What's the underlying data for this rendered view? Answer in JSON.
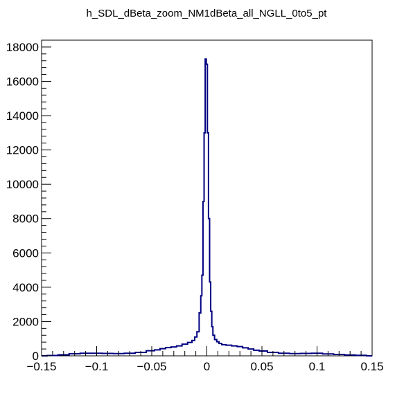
{
  "chart_data": {
    "type": "histogram",
    "title": "h_SDL_dBeta_zoom_NM1dBeta_all_NGLL_0to5_pt",
    "xlabel": "",
    "ylabel": "",
    "xlim": [
      -0.15,
      0.15
    ],
    "ylim": [
      0,
      18400
    ],
    "x_ticks": [
      -0.15,
      -0.1,
      -0.05,
      0,
      0.05,
      0.1,
      0.15
    ],
    "x_tick_labels": [
      "−0.15",
      "−0.1",
      "−0.05",
      "0",
      "0.05",
      "0.1",
      "0.15"
    ],
    "y_ticks": [
      0,
      2000,
      4000,
      6000,
      8000,
      10000,
      12000,
      14000,
      16000,
      18000
    ],
    "y_tick_labels": [
      "0",
      "2000",
      "4000",
      "6000",
      "8000",
      "10000",
      "12000",
      "14000",
      "16000",
      "18000"
    ],
    "grid": false,
    "legend": "none",
    "line_color": "#000080",
    "series": [
      {
        "x": [
          -0.15,
          -0.14,
          -0.13,
          -0.12,
          -0.11,
          -0.1,
          -0.09,
          -0.08,
          -0.07,
          -0.06,
          -0.05,
          -0.045,
          -0.04,
          -0.035,
          -0.03,
          -0.025,
          -0.02,
          -0.015,
          -0.012,
          -0.01,
          -0.008,
          -0.006,
          -0.005,
          -0.004,
          -0.003,
          -0.002,
          -0.001,
          0,
          0.001,
          0.002,
          0.003,
          0.004,
          0.005,
          0.006,
          0.008,
          0.01,
          0.012,
          0.015,
          0.02,
          0.025,
          0.03,
          0.035,
          0.04,
          0.045,
          0.05,
          0.06,
          0.07,
          0.08,
          0.09,
          0.1,
          0.11,
          0.12,
          0.13,
          0.14,
          0.15
        ],
        "values": [
          0,
          20,
          60,
          120,
          150,
          150,
          140,
          130,
          150,
          200,
          300,
          350,
          420,
          480,
          520,
          580,
          680,
          780,
          900,
          1100,
          1400,
          2500,
          3500,
          4700,
          9000,
          13000,
          17300,
          17000,
          13000,
          8000,
          4300,
          2600,
          1700,
          1200,
          950,
          820,
          720,
          650,
          620,
          580,
          540,
          470,
          400,
          330,
          280,
          200,
          150,
          130,
          140,
          150,
          110,
          80,
          50,
          30,
          0
        ]
      }
    ]
  }
}
